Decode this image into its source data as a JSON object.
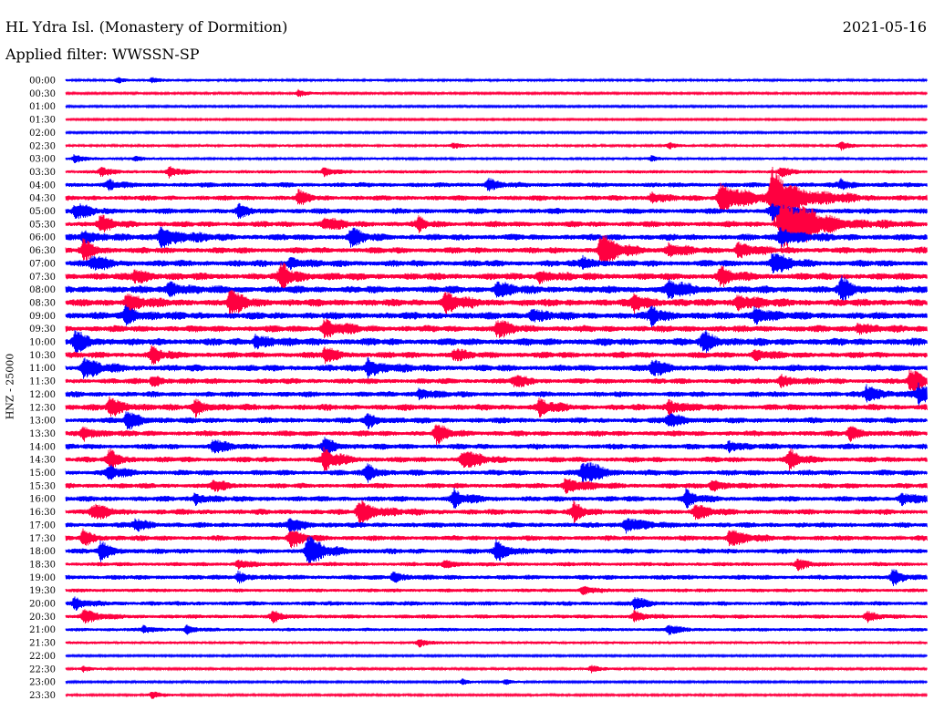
{
  "header": {
    "station": "HL Ydra Isl. (Monastery of Dormition)",
    "date": "2021-05-16",
    "filter": "Applied filter: WWSSN-SP"
  },
  "channel_label": "HNZ - 25000",
  "colors": {
    "even_row": "#0000ff",
    "odd_row": "#ff0040"
  },
  "chart_data": {
    "type": "line",
    "title": "HL Ydra Isl. (Monastery of Dormition)",
    "date": "2021-05-16",
    "filter": "WWSSN-SP",
    "ylabel": "HNZ - 25000",
    "row_interval": "30 min",
    "row_colors": [
      "#0000ff",
      "#ff0040"
    ],
    "rows": [
      {
        "time": "00:00",
        "activity": 0.15,
        "events": [
          {
            "t": 0.06,
            "amp": 0.25
          },
          {
            "t": 0.1,
            "amp": 0.3
          }
        ]
      },
      {
        "time": "00:30",
        "activity": 0.1,
        "events": [
          {
            "t": 0.27,
            "amp": 0.35
          }
        ]
      },
      {
        "time": "01:00",
        "activity": 0.08,
        "events": []
      },
      {
        "time": "01:30",
        "activity": 0.06,
        "events": []
      },
      {
        "time": "02:00",
        "activity": 0.08,
        "events": []
      },
      {
        "time": "02:30",
        "activity": 0.15,
        "events": [
          {
            "t": 0.45,
            "amp": 0.3
          },
          {
            "t": 0.7,
            "amp": 0.3
          },
          {
            "t": 0.9,
            "amp": 0.45
          }
        ]
      },
      {
        "time": "03:00",
        "activity": 0.15,
        "events": [
          {
            "t": 0.01,
            "amp": 0.45
          },
          {
            "t": 0.08,
            "amp": 0.3
          },
          {
            "t": 0.68,
            "amp": 0.3
          }
        ]
      },
      {
        "time": "03:30",
        "activity": 0.3,
        "events": [
          {
            "t": 0.04,
            "amp": 0.45
          },
          {
            "t": 0.12,
            "amp": 0.55
          },
          {
            "t": 0.3,
            "amp": 0.45
          },
          {
            "t": 0.83,
            "amp": 0.5
          }
        ]
      },
      {
        "time": "04:00",
        "activity": 0.5,
        "events": [
          {
            "t": 0.05,
            "amp": 0.5
          },
          {
            "t": 0.49,
            "amp": 0.6
          },
          {
            "t": 0.9,
            "amp": 0.55
          }
        ]
      },
      {
        "time": "04:30",
        "activity": 0.55,
        "events": [
          {
            "t": 0.27,
            "amp": 0.55
          },
          {
            "t": 0.68,
            "amp": 0.7
          },
          {
            "t": 0.76,
            "amp": 1.8
          },
          {
            "t": 0.82,
            "amp": 2.5
          }
        ]
      },
      {
        "time": "05:00",
        "activity": 0.6,
        "events": [
          {
            "t": 0.01,
            "amp": 0.8
          },
          {
            "t": 0.2,
            "amp": 0.5
          },
          {
            "t": 0.82,
            "amp": 0.9
          }
        ]
      },
      {
        "time": "05:30",
        "activity": 0.65,
        "events": [
          {
            "t": 0.04,
            "amp": 0.7
          },
          {
            "t": 0.3,
            "amp": 0.7
          },
          {
            "t": 0.41,
            "amp": 0.5
          },
          {
            "t": 0.83,
            "amp": 2.8
          }
        ]
      },
      {
        "time": "06:00",
        "activity": 0.7,
        "events": [
          {
            "t": 0.02,
            "amp": 0.9
          },
          {
            "t": 0.11,
            "amp": 1.4
          },
          {
            "t": 0.33,
            "amp": 0.8
          },
          {
            "t": 0.83,
            "amp": 1.2
          }
        ]
      },
      {
        "time": "06:30",
        "activity": 0.7,
        "events": [
          {
            "t": 0.02,
            "amp": 0.8
          },
          {
            "t": 0.62,
            "amp": 1.4
          },
          {
            "t": 0.7,
            "amp": 0.7
          },
          {
            "t": 0.78,
            "amp": 0.9
          }
        ]
      },
      {
        "time": "07:00",
        "activity": 0.75,
        "events": [
          {
            "t": 0.03,
            "amp": 0.8
          },
          {
            "t": 0.26,
            "amp": 0.7
          },
          {
            "t": 0.6,
            "amp": 0.7
          },
          {
            "t": 0.82,
            "amp": 1.0
          }
        ]
      },
      {
        "time": "07:30",
        "activity": 0.8,
        "events": [
          {
            "t": 0.08,
            "amp": 0.8
          },
          {
            "t": 0.25,
            "amp": 1.1
          },
          {
            "t": 0.55,
            "amp": 0.8
          },
          {
            "t": 0.76,
            "amp": 0.8
          }
        ]
      },
      {
        "time": "08:00",
        "activity": 0.85,
        "events": [
          {
            "t": 0.12,
            "amp": 0.9
          },
          {
            "t": 0.5,
            "amp": 0.8
          },
          {
            "t": 0.7,
            "amp": 1.0
          },
          {
            "t": 0.9,
            "amp": 0.9
          }
        ]
      },
      {
        "time": "08:30",
        "activity": 0.85,
        "events": [
          {
            "t": 0.07,
            "amp": 1.0
          },
          {
            "t": 0.19,
            "amp": 1.0
          },
          {
            "t": 0.44,
            "amp": 1.0
          },
          {
            "t": 0.66,
            "amp": 0.9
          },
          {
            "t": 0.78,
            "amp": 1.0
          }
        ]
      },
      {
        "time": "09:00",
        "activity": 0.85,
        "events": [
          {
            "t": 0.07,
            "amp": 1.0
          },
          {
            "t": 0.54,
            "amp": 0.8
          },
          {
            "t": 0.68,
            "amp": 0.8
          },
          {
            "t": 0.8,
            "amp": 1.0
          }
        ]
      },
      {
        "time": "09:30",
        "activity": 0.75,
        "events": [
          {
            "t": 0.3,
            "amp": 1.0
          },
          {
            "t": 0.5,
            "amp": 0.8
          },
          {
            "t": 0.92,
            "amp": 0.7
          }
        ]
      },
      {
        "time": "10:00",
        "activity": 0.85,
        "events": [
          {
            "t": 0.01,
            "amp": 0.9
          },
          {
            "t": 0.22,
            "amp": 0.9
          },
          {
            "t": 0.74,
            "amp": 1.0
          }
        ]
      },
      {
        "time": "10:30",
        "activity": 0.7,
        "events": [
          {
            "t": 0.1,
            "amp": 0.7
          },
          {
            "t": 0.3,
            "amp": 0.7
          },
          {
            "t": 0.45,
            "amp": 0.6
          },
          {
            "t": 0.8,
            "amp": 0.6
          }
        ]
      },
      {
        "time": "11:00",
        "activity": 0.75,
        "events": [
          {
            "t": 0.02,
            "amp": 1.0
          },
          {
            "t": 0.35,
            "amp": 1.1
          },
          {
            "t": 0.68,
            "amp": 0.8
          }
        ]
      },
      {
        "time": "11:30",
        "activity": 0.6,
        "events": [
          {
            "t": 0.1,
            "amp": 0.6
          },
          {
            "t": 0.52,
            "amp": 0.6
          },
          {
            "t": 0.83,
            "amp": 0.8
          },
          {
            "t": 0.98,
            "amp": 1.0
          }
        ]
      },
      {
        "time": "12:00",
        "activity": 0.6,
        "events": [
          {
            "t": 0.41,
            "amp": 0.7
          },
          {
            "t": 0.93,
            "amp": 1.0
          },
          {
            "t": 0.99,
            "amp": 1.1
          }
        ]
      },
      {
        "time": "12:30",
        "activity": 0.7,
        "events": [
          {
            "t": 0.05,
            "amp": 1.0
          },
          {
            "t": 0.15,
            "amp": 0.8
          },
          {
            "t": 0.55,
            "amp": 0.8
          },
          {
            "t": 0.7,
            "amp": 0.9
          }
        ]
      },
      {
        "time": "13:00",
        "activity": 0.6,
        "events": [
          {
            "t": 0.07,
            "amp": 0.9
          },
          {
            "t": 0.35,
            "amp": 0.7
          },
          {
            "t": 0.7,
            "amp": 0.8
          }
        ]
      },
      {
        "time": "13:30",
        "activity": 0.6,
        "events": [
          {
            "t": 0.02,
            "amp": 0.8
          },
          {
            "t": 0.43,
            "amp": 0.8
          },
          {
            "t": 0.91,
            "amp": 0.7
          }
        ]
      },
      {
        "time": "14:00",
        "activity": 0.6,
        "events": [
          {
            "t": 0.17,
            "amp": 0.7
          },
          {
            "t": 0.3,
            "amp": 0.8
          },
          {
            "t": 0.77,
            "amp": 0.7
          }
        ]
      },
      {
        "time": "14:30",
        "activity": 0.6,
        "events": [
          {
            "t": 0.05,
            "amp": 0.8
          },
          {
            "t": 0.3,
            "amp": 1.0
          },
          {
            "t": 0.46,
            "amp": 1.0
          },
          {
            "t": 0.84,
            "amp": 0.8
          }
        ]
      },
      {
        "time": "15:00",
        "activity": 0.6,
        "events": [
          {
            "t": 0.05,
            "amp": 0.7
          },
          {
            "t": 0.35,
            "amp": 0.8
          },
          {
            "t": 0.6,
            "amp": 1.2
          }
        ]
      },
      {
        "time": "15:30",
        "activity": 0.55,
        "events": [
          {
            "t": 0.17,
            "amp": 0.6
          },
          {
            "t": 0.58,
            "amp": 1.0
          },
          {
            "t": 0.75,
            "amp": 0.7
          }
        ]
      },
      {
        "time": "16:00",
        "activity": 0.6,
        "events": [
          {
            "t": 0.15,
            "amp": 0.7
          },
          {
            "t": 0.45,
            "amp": 0.8
          },
          {
            "t": 0.72,
            "amp": 0.7
          },
          {
            "t": 0.97,
            "amp": 0.8
          }
        ]
      },
      {
        "time": "16:30",
        "activity": 0.6,
        "events": [
          {
            "t": 0.03,
            "amp": 0.8
          },
          {
            "t": 0.34,
            "amp": 1.3
          },
          {
            "t": 0.59,
            "amp": 0.8
          },
          {
            "t": 0.73,
            "amp": 0.8
          }
        ]
      },
      {
        "time": "17:00",
        "activity": 0.55,
        "events": [
          {
            "t": 0.08,
            "amp": 0.7
          },
          {
            "t": 0.26,
            "amp": 0.8
          },
          {
            "t": 0.65,
            "amp": 1.0
          }
        ]
      },
      {
        "time": "17:30",
        "activity": 0.55,
        "events": [
          {
            "t": 0.02,
            "amp": 0.7
          },
          {
            "t": 0.26,
            "amp": 0.8
          },
          {
            "t": 0.77,
            "amp": 1.0
          }
        ]
      },
      {
        "time": "18:00",
        "activity": 0.55,
        "events": [
          {
            "t": 0.04,
            "amp": 0.8
          },
          {
            "t": 0.28,
            "amp": 1.3
          },
          {
            "t": 0.5,
            "amp": 1.0
          }
        ]
      },
      {
        "time": "18:30",
        "activity": 0.4,
        "events": [
          {
            "t": 0.2,
            "amp": 0.5
          },
          {
            "t": 0.44,
            "amp": 0.5
          },
          {
            "t": 0.85,
            "amp": 0.5
          }
        ]
      },
      {
        "time": "19:00",
        "activity": 0.5,
        "events": [
          {
            "t": 0.2,
            "amp": 0.6
          },
          {
            "t": 0.38,
            "amp": 0.6
          },
          {
            "t": 0.96,
            "amp": 0.6
          }
        ]
      },
      {
        "time": "19:30",
        "activity": 0.35,
        "events": [
          {
            "t": 0.6,
            "amp": 0.5
          }
        ]
      },
      {
        "time": "20:00",
        "activity": 0.45,
        "events": [
          {
            "t": 0.01,
            "amp": 0.6
          },
          {
            "t": 0.66,
            "amp": 0.6
          }
        ]
      },
      {
        "time": "20:30",
        "activity": 0.4,
        "events": [
          {
            "t": 0.02,
            "amp": 0.8
          },
          {
            "t": 0.24,
            "amp": 0.5
          },
          {
            "t": 0.66,
            "amp": 0.5
          },
          {
            "t": 0.93,
            "amp": 0.5
          }
        ]
      },
      {
        "time": "21:00",
        "activity": 0.3,
        "events": [
          {
            "t": 0.09,
            "amp": 0.4
          },
          {
            "t": 0.14,
            "amp": 0.4
          },
          {
            "t": 0.7,
            "amp": 0.5
          }
        ]
      },
      {
        "time": "21:30",
        "activity": 0.2,
        "events": [
          {
            "t": 0.41,
            "amp": 0.45
          }
        ]
      },
      {
        "time": "22:00",
        "activity": 0.08,
        "events": []
      },
      {
        "time": "22:30",
        "activity": 0.12,
        "events": [
          {
            "t": 0.02,
            "amp": 0.3
          },
          {
            "t": 0.61,
            "amp": 0.4
          }
        ]
      },
      {
        "time": "23:00",
        "activity": 0.08,
        "events": [
          {
            "t": 0.46,
            "amp": 0.3
          },
          {
            "t": 0.51,
            "amp": 0.3
          }
        ]
      },
      {
        "time": "23:30",
        "activity": 0.12,
        "events": [
          {
            "t": 0.1,
            "amp": 0.4
          }
        ]
      }
    ]
  }
}
